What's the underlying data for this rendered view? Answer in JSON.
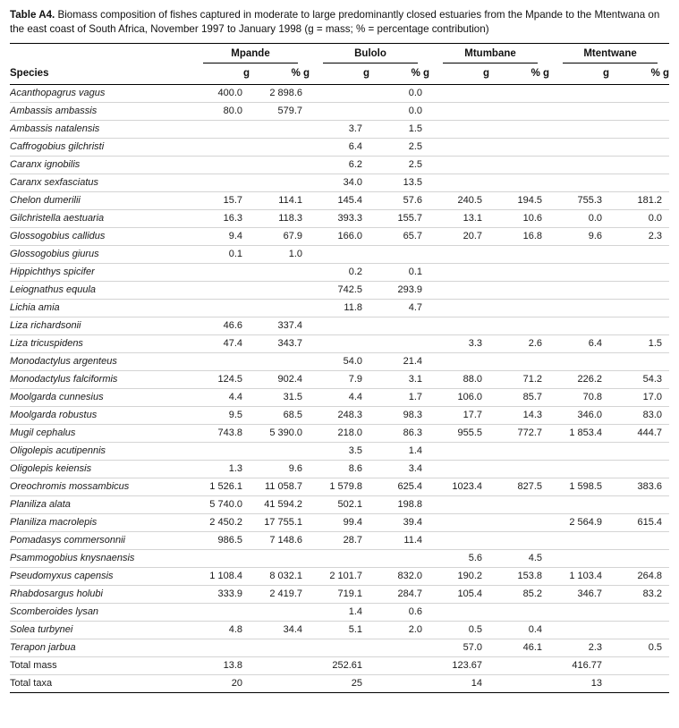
{
  "caption": {
    "label": "Table A4.",
    "text": " Biomass composition of fishes captured in moderate to large predominantly closed estuaries from the Mpande to the Mtentwana on the east coast of South Africa, November 1997 to January 1998 (g = mass; % = percentage contribution)"
  },
  "table": {
    "species_header": "Species",
    "groups": [
      "Mpande",
      "Bulolo",
      "Mtumbane",
      "Mtentwane"
    ],
    "subheaders": [
      "g",
      "% g"
    ],
    "rows": [
      {
        "species": "Acanthopagrus vagus",
        "italic": true,
        "values": [
          "400.0",
          "2 898.6",
          "",
          "0.0",
          "",
          "",
          "",
          ""
        ]
      },
      {
        "species": "Ambassis ambassis",
        "italic": true,
        "values": [
          "80.0",
          "579.7",
          "",
          "0.0",
          "",
          "",
          "",
          ""
        ]
      },
      {
        "species": "Ambassis natalensis",
        "italic": true,
        "values": [
          "",
          "",
          "3.7",
          "1.5",
          "",
          "",
          "",
          ""
        ]
      },
      {
        "species": "Caffrogobius gilchristi",
        "italic": true,
        "values": [
          "",
          "",
          "6.4",
          "2.5",
          "",
          "",
          "",
          ""
        ]
      },
      {
        "species": "Caranx ignobilis",
        "italic": true,
        "values": [
          "",
          "",
          "6.2",
          "2.5",
          "",
          "",
          "",
          ""
        ]
      },
      {
        "species": "Caranx sexfasciatus",
        "italic": true,
        "values": [
          "",
          "",
          "34.0",
          "13.5",
          "",
          "",
          "",
          ""
        ]
      },
      {
        "species": "Chelon dumerilii",
        "italic": true,
        "values": [
          "15.7",
          "114.1",
          "145.4",
          "57.6",
          "240.5",
          "194.5",
          "755.3",
          "181.2"
        ]
      },
      {
        "species": "Gilchristella aestuaria",
        "italic": true,
        "values": [
          "16.3",
          "118.3",
          "393.3",
          "155.7",
          "13.1",
          "10.6",
          "0.0",
          "0.0"
        ]
      },
      {
        "species": "Glossogobius callidus",
        "italic": true,
        "values": [
          "9.4",
          "67.9",
          "166.0",
          "65.7",
          "20.7",
          "16.8",
          "9.6",
          "2.3"
        ]
      },
      {
        "species": "Glossogobius giurus",
        "italic": true,
        "values": [
          "0.1",
          "1.0",
          "",
          "",
          "",
          "",
          "",
          ""
        ]
      },
      {
        "species": "Hippichthys spicifer",
        "italic": true,
        "values": [
          "",
          "",
          "0.2",
          "0.1",
          "",
          "",
          "",
          ""
        ]
      },
      {
        "species": "Leiognathus equula",
        "italic": true,
        "values": [
          "",
          "",
          "742.5",
          "293.9",
          "",
          "",
          "",
          ""
        ]
      },
      {
        "species": "Lichia amia",
        "italic": true,
        "values": [
          "",
          "",
          "11.8",
          "4.7",
          "",
          "",
          "",
          ""
        ]
      },
      {
        "species": "Liza richardsonii",
        "italic": true,
        "values": [
          "46.6",
          "337.4",
          "",
          "",
          "",
          "",
          "",
          ""
        ]
      },
      {
        "species": "Liza tricuspidens",
        "italic": true,
        "values": [
          "47.4",
          "343.7",
          "",
          "",
          "3.3",
          "2.6",
          "6.4",
          "1.5"
        ]
      },
      {
        "species": "Monodactylus argenteus",
        "italic": true,
        "values": [
          "",
          "",
          "54.0",
          "21.4",
          "",
          "",
          "",
          ""
        ]
      },
      {
        "species": "Monodactylus falciformis",
        "italic": true,
        "values": [
          "124.5",
          "902.4",
          "7.9",
          "3.1",
          "88.0",
          "71.2",
          "226.2",
          "54.3"
        ]
      },
      {
        "species": "Moolgarda cunnesius",
        "italic": true,
        "values": [
          "4.4",
          "31.5",
          "4.4",
          "1.7",
          "106.0",
          "85.7",
          "70.8",
          "17.0"
        ]
      },
      {
        "species": "Moolgarda robustus",
        "italic": true,
        "values": [
          "9.5",
          "68.5",
          "248.3",
          "98.3",
          "17.7",
          "14.3",
          "346.0",
          "83.0"
        ]
      },
      {
        "species": "Mugil cephalus",
        "italic": true,
        "values": [
          "743.8",
          "5 390.0",
          "218.0",
          "86.3",
          "955.5",
          "772.7",
          "1 853.4",
          "444.7"
        ]
      },
      {
        "species": "Oligolepis acutipennis",
        "italic": true,
        "values": [
          "",
          "",
          "3.5",
          "1.4",
          "",
          "",
          "",
          ""
        ]
      },
      {
        "species": "Oligolepis keiensis",
        "italic": true,
        "values": [
          "1.3",
          "9.6",
          "8.6",
          "3.4",
          "",
          "",
          "",
          ""
        ]
      },
      {
        "species": "Oreochromis mossambicus",
        "italic": true,
        "values": [
          "1 526.1",
          "11 058.7",
          "1 579.8",
          "625.4",
          "1023.4",
          "827.5",
          "1 598.5",
          "383.6"
        ]
      },
      {
        "species": "Planiliza alata",
        "italic": true,
        "values": [
          "5 740.0",
          "41 594.2",
          "502.1",
          "198.8",
          "",
          "",
          "",
          ""
        ]
      },
      {
        "species": "Planiliza macrolepis",
        "italic": true,
        "values": [
          "2 450.2",
          "17 755.1",
          "99.4",
          "39.4",
          "",
          "",
          "2 564.9",
          "615.4"
        ]
      },
      {
        "species": "Pomadasys commersonnii",
        "italic": true,
        "values": [
          "986.5",
          "7 148.6",
          "28.7",
          "11.4",
          "",
          "",
          "",
          ""
        ]
      },
      {
        "species": "Psammogobius knysnaensis",
        "italic": true,
        "values": [
          "",
          "",
          "",
          "",
          "5.6",
          "4.5",
          "",
          ""
        ]
      },
      {
        "species": "Pseudomyxus capensis",
        "italic": true,
        "values": [
          "1 108.4",
          "8 032.1",
          "2 101.7",
          "832.0",
          "190.2",
          "153.8",
          "1 103.4",
          "264.8"
        ]
      },
      {
        "species": "Rhabdosargus holubi",
        "italic": true,
        "values": [
          "333.9",
          "2 419.7",
          "719.1",
          "284.7",
          "105.4",
          "85.2",
          "346.7",
          "83.2"
        ]
      },
      {
        "species": "Scomberoides lysan",
        "italic": true,
        "values": [
          "",
          "",
          "1.4",
          "0.6",
          "",
          "",
          "",
          ""
        ]
      },
      {
        "species": "Solea turbynei",
        "italic": true,
        "values": [
          "4.8",
          "34.4",
          "5.1",
          "2.0",
          "0.5",
          "0.4",
          "",
          ""
        ]
      },
      {
        "species": "Terapon jarbua",
        "italic": true,
        "values": [
          "",
          "",
          "",
          "",
          "57.0",
          "46.1",
          "2.3",
          "0.5"
        ]
      },
      {
        "species": "Total mass",
        "italic": false,
        "values": [
          "13.8",
          "",
          "252.61",
          "",
          "123.67",
          "",
          "416.77",
          ""
        ]
      },
      {
        "species": "Total taxa",
        "italic": false,
        "values": [
          "20",
          "",
          "25",
          "",
          "14",
          "",
          "13",
          ""
        ]
      }
    ]
  }
}
